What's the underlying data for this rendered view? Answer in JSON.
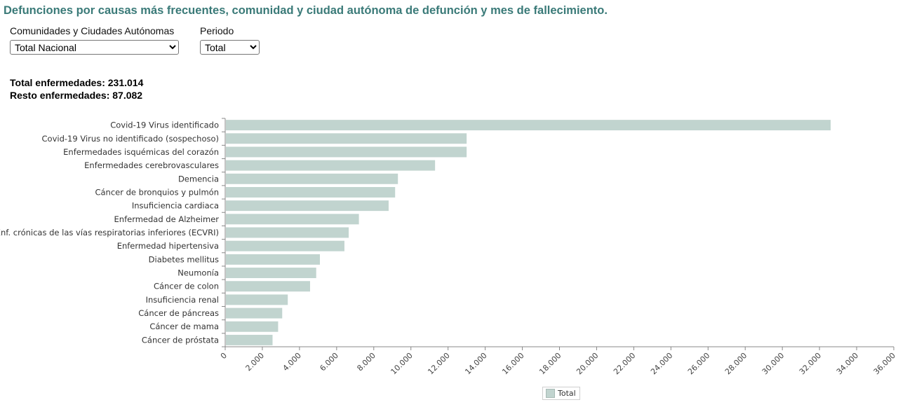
{
  "page": {
    "title": "Defunciones por causas más frecuentes, comunidad y ciudad autónoma de defunción y mes de fallecimiento."
  },
  "filters": {
    "ccaa_label": "Comunidades y Ciudades Autónomas",
    "ccaa_value": "Total Nacional",
    "period_label": "Periodo",
    "period_value": "Total"
  },
  "totals": {
    "total_text": "Total enfermedades: 231.014",
    "resto_text": "Resto enfermedades: 87.082"
  },
  "colors": {
    "bar": "#c1d4cf",
    "title": "#3a7a78"
  },
  "chart_data": {
    "type": "bar",
    "orientation": "horizontal",
    "categories": [
      "Covid-19 Virus identificado",
      "Covid-19 Virus no identificado (sospechoso)",
      "Enfermedades isquémicas del corazón",
      "Enfermedades cerebrovasculares",
      "Demencia",
      "Cáncer de bronquios y pulmón",
      "Insuficiencia cardiaca",
      "Enfermedad de Alzheimer",
      "Enf. crónicas de las vías respiratorias inferiores (ECVRI)",
      "Enfermedad hipertensiva",
      "Diabetes mellitus",
      "Neumonía",
      "Cáncer de colon",
      "Insuficiencia renal",
      "Cáncer de páncreas",
      "Cáncer de mama",
      "Cáncer de próstata"
    ],
    "series": [
      {
        "name": "Total",
        "values": [
          32600,
          13000,
          13000,
          11300,
          9300,
          9150,
          8800,
          7200,
          6650,
          6420,
          5100,
          4900,
          4570,
          3370,
          3070,
          2850,
          2550
        ]
      }
    ],
    "xlim": [
      0,
      36000
    ],
    "x_ticks": [
      0,
      2000,
      4000,
      6000,
      8000,
      10000,
      12000,
      14000,
      16000,
      18000,
      20000,
      22000,
      24000,
      26000,
      28000,
      30000,
      32000,
      34000,
      36000
    ],
    "x_tick_labels": [
      "0",
      "2.000",
      "4.000",
      "6.000",
      "8.000",
      "10.000",
      "12.000",
      "14.000",
      "16.000",
      "18.000",
      "20.000",
      "22.000",
      "24.000",
      "26.000",
      "28.000",
      "30.000",
      "32.000",
      "34.000",
      "36.000"
    ],
    "legend": {
      "entries": [
        "Total"
      ],
      "position": "bottom-center"
    },
    "grid": false
  }
}
